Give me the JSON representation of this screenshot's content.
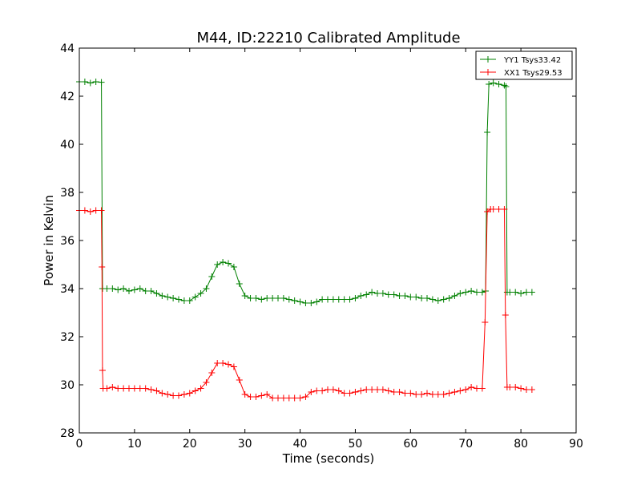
{
  "chart_data": {
    "type": "line",
    "title": "M44, ID:22210 Calibrated Amplitude",
    "xlabel": "Time (seconds)",
    "ylabel": "Power in Kelvin",
    "xlim": [
      0,
      90
    ],
    "ylim": [
      28,
      44
    ],
    "xticks": [
      0,
      10,
      20,
      30,
      40,
      50,
      60,
      70,
      80,
      90
    ],
    "yticks": [
      28,
      30,
      32,
      34,
      36,
      38,
      40,
      42,
      44
    ],
    "grid": false,
    "legend_position": "top-right",
    "marker": "plus",
    "series": [
      {
        "name": "YY1 Tsys33.42",
        "color": "#008000",
        "points": [
          [
            0,
            42.6
          ],
          [
            1,
            42.6
          ],
          [
            2,
            42.55
          ],
          [
            3,
            42.6
          ],
          [
            4,
            42.58
          ],
          [
            4.2,
            34.0
          ],
          [
            5,
            34.0
          ],
          [
            6,
            34.0
          ],
          [
            7,
            33.95
          ],
          [
            8,
            34.0
          ],
          [
            9,
            33.9
          ],
          [
            10,
            33.95
          ],
          [
            11,
            34.0
          ],
          [
            12,
            33.9
          ],
          [
            13,
            33.9
          ],
          [
            14,
            33.8
          ],
          [
            15,
            33.7
          ],
          [
            16,
            33.65
          ],
          [
            17,
            33.6
          ],
          [
            18,
            33.55
          ],
          [
            19,
            33.5
          ],
          [
            20,
            33.5
          ],
          [
            21,
            33.65
          ],
          [
            22,
            33.8
          ],
          [
            23,
            34.0
          ],
          [
            24,
            34.5
          ],
          [
            25,
            35.0
          ],
          [
            26,
            35.1
          ],
          [
            27,
            35.05
          ],
          [
            28,
            34.9
          ],
          [
            29,
            34.2
          ],
          [
            30,
            33.7
          ],
          [
            31,
            33.6
          ],
          [
            32,
            33.6
          ],
          [
            33,
            33.55
          ],
          [
            34,
            33.6
          ],
          [
            35,
            33.6
          ],
          [
            36,
            33.6
          ],
          [
            37,
            33.6
          ],
          [
            38,
            33.55
          ],
          [
            39,
            33.5
          ],
          [
            40,
            33.45
          ],
          [
            41,
            33.4
          ],
          [
            42,
            33.4
          ],
          [
            43,
            33.45
          ],
          [
            44,
            33.55
          ],
          [
            45,
            33.55
          ],
          [
            46,
            33.55
          ],
          [
            47,
            33.55
          ],
          [
            48,
            33.55
          ],
          [
            49,
            33.55
          ],
          [
            50,
            33.6
          ],
          [
            51,
            33.7
          ],
          [
            52,
            33.75
          ],
          [
            53,
            33.85
          ],
          [
            54,
            33.8
          ],
          [
            55,
            33.8
          ],
          [
            56,
            33.75
          ],
          [
            57,
            33.75
          ],
          [
            58,
            33.7
          ],
          [
            59,
            33.7
          ],
          [
            60,
            33.65
          ],
          [
            61,
            33.65
          ],
          [
            62,
            33.6
          ],
          [
            63,
            33.6
          ],
          [
            64,
            33.55
          ],
          [
            65,
            33.5
          ],
          [
            66,
            33.55
          ],
          [
            67,
            33.6
          ],
          [
            68,
            33.7
          ],
          [
            69,
            33.8
          ],
          [
            70,
            33.85
          ],
          [
            71,
            33.9
          ],
          [
            72,
            33.85
          ],
          [
            73,
            33.85
          ],
          [
            73.6,
            33.9
          ],
          [
            73.9,
            40.5
          ],
          [
            74.2,
            42.5
          ],
          [
            75,
            42.55
          ],
          [
            76,
            42.5
          ],
          [
            77,
            42.45
          ],
          [
            77.3,
            42.4
          ],
          [
            77.5,
            33.85
          ],
          [
            78,
            33.85
          ],
          [
            79,
            33.85
          ],
          [
            80,
            33.8
          ],
          [
            81,
            33.85
          ],
          [
            82,
            33.85
          ]
        ]
      },
      {
        "name": "XX1 Tsys29.53",
        "color": "#ff0000",
        "points": [
          [
            0,
            37.25
          ],
          [
            1,
            37.25
          ],
          [
            2,
            37.2
          ],
          [
            3,
            37.25
          ],
          [
            4,
            37.25
          ],
          [
            4.1,
            34.9
          ],
          [
            4.2,
            30.6
          ],
          [
            4.3,
            29.85
          ],
          [
            5,
            29.85
          ],
          [
            6,
            29.9
          ],
          [
            7,
            29.85
          ],
          [
            8,
            29.85
          ],
          [
            9,
            29.85
          ],
          [
            10,
            29.85
          ],
          [
            11,
            29.85
          ],
          [
            12,
            29.85
          ],
          [
            13,
            29.8
          ],
          [
            14,
            29.75
          ],
          [
            15,
            29.65
          ],
          [
            16,
            29.6
          ],
          [
            17,
            29.55
          ],
          [
            18,
            29.55
          ],
          [
            19,
            29.6
          ],
          [
            20,
            29.65
          ],
          [
            21,
            29.75
          ],
          [
            22,
            29.85
          ],
          [
            23,
            30.1
          ],
          [
            24,
            30.5
          ],
          [
            25,
            30.9
          ],
          [
            26,
            30.9
          ],
          [
            27,
            30.85
          ],
          [
            28,
            30.75
          ],
          [
            29,
            30.2
          ],
          [
            30,
            29.6
          ],
          [
            31,
            29.5
          ],
          [
            32,
            29.5
          ],
          [
            33,
            29.55
          ],
          [
            34,
            29.6
          ],
          [
            35,
            29.45
          ],
          [
            36,
            29.45
          ],
          [
            37,
            29.45
          ],
          [
            38,
            29.45
          ],
          [
            39,
            29.45
          ],
          [
            40,
            29.45
          ],
          [
            41,
            29.5
          ],
          [
            42,
            29.7
          ],
          [
            43,
            29.75
          ],
          [
            44,
            29.75
          ],
          [
            45,
            29.8
          ],
          [
            46,
            29.8
          ],
          [
            47,
            29.75
          ],
          [
            48,
            29.65
          ],
          [
            49,
            29.65
          ],
          [
            50,
            29.7
          ],
          [
            51,
            29.75
          ],
          [
            52,
            29.8
          ],
          [
            53,
            29.8
          ],
          [
            54,
            29.8
          ],
          [
            55,
            29.8
          ],
          [
            56,
            29.75
          ],
          [
            57,
            29.7
          ],
          [
            58,
            29.7
          ],
          [
            59,
            29.65
          ],
          [
            60,
            29.65
          ],
          [
            61,
            29.6
          ],
          [
            62,
            29.6
          ],
          [
            63,
            29.65
          ],
          [
            64,
            29.6
          ],
          [
            65,
            29.6
          ],
          [
            66,
            29.6
          ],
          [
            67,
            29.65
          ],
          [
            68,
            29.7
          ],
          [
            69,
            29.75
          ],
          [
            70,
            29.8
          ],
          [
            71,
            29.9
          ],
          [
            72,
            29.85
          ],
          [
            73,
            29.85
          ],
          [
            73.5,
            32.6
          ],
          [
            73.9,
            37.2
          ],
          [
            74.5,
            37.3
          ],
          [
            75,
            37.3
          ],
          [
            76,
            37.3
          ],
          [
            77,
            37.3
          ],
          [
            77.2,
            32.9
          ],
          [
            77.5,
            29.9
          ],
          [
            78,
            29.9
          ],
          [
            79,
            29.9
          ],
          [
            80,
            29.85
          ],
          [
            81,
            29.8
          ],
          [
            82,
            29.8
          ]
        ]
      }
    ]
  }
}
